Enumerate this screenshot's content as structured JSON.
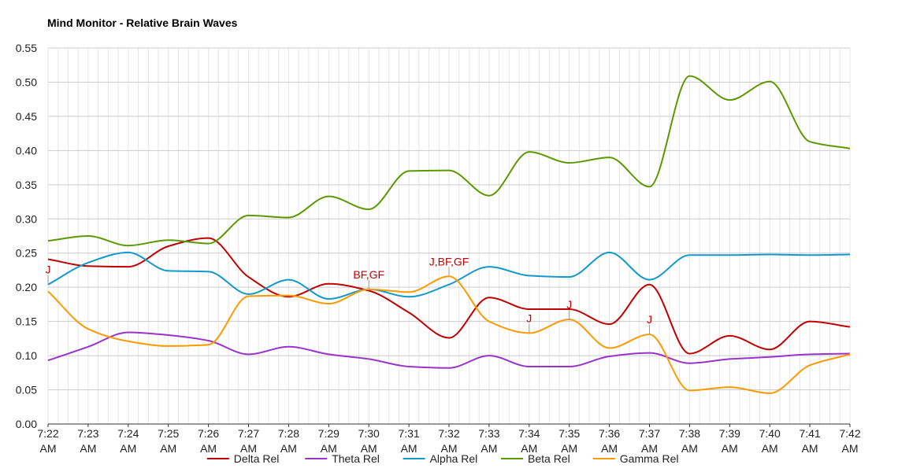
{
  "chart_data": {
    "type": "line",
    "title": "Mind Monitor -  Relative Brain Waves",
    "xlabel": "",
    "ylabel": "",
    "ylim": [
      0,
      0.55
    ],
    "y_ticks": [
      "0.00",
      "0.05",
      "0.10",
      "0.15",
      "0.20",
      "0.25",
      "0.30",
      "0.35",
      "0.40",
      "0.45",
      "0.50",
      "0.55"
    ],
    "x_ticks": [
      {
        "line1": "7:22",
        "line2": "AM"
      },
      {
        "line1": "7:23",
        "line2": "AM"
      },
      {
        "line1": "7:24",
        "line2": "AM"
      },
      {
        "line1": "7:25",
        "line2": "AM"
      },
      {
        "line1": "7:26",
        "line2": "AM"
      },
      {
        "line1": "7:27",
        "line2": "AM"
      },
      {
        "line1": "7:28",
        "line2": "AM"
      },
      {
        "line1": "7:29",
        "line2": "AM"
      },
      {
        "line1": "7:30",
        "line2": "AM"
      },
      {
        "line1": "7:31",
        "line2": "AM"
      },
      {
        "line1": "7:32",
        "line2": "AM"
      },
      {
        "line1": "7:33",
        "line2": "AM"
      },
      {
        "line1": "7:34",
        "line2": "AM"
      },
      {
        "line1": "7:35",
        "line2": "AM"
      },
      {
        "line1": "7:36",
        "line2": "AM"
      },
      {
        "line1": "7:37",
        "line2": "AM"
      },
      {
        "line1": "7:38",
        "line2": "AM"
      },
      {
        "line1": "7:39",
        "line2": "AM"
      },
      {
        "line1": "7:40",
        "line2": "AM"
      },
      {
        "line1": "7:41",
        "line2": "AM"
      },
      {
        "line1": "7:42",
        "line2": "AM"
      }
    ],
    "x": [
      "7:22",
      "7:23",
      "7:24",
      "7:25",
      "7:26",
      "7:27",
      "7:28",
      "7:29",
      "7:30",
      "7:31",
      "7:32",
      "7:33",
      "7:34",
      "7:35",
      "7:36",
      "7:37",
      "7:38",
      "7:39",
      "7:40",
      "7:41",
      "7:42"
    ],
    "grid": true,
    "legend_position": "bottom",
    "series": [
      {
        "name": "Delta Rel",
        "color": "#c00000",
        "values": [
          0.241,
          0.231,
          0.23,
          0.26,
          0.272,
          0.215,
          0.186,
          0.205,
          0.195,
          0.163,
          0.126,
          0.185,
          0.168,
          0.168,
          0.146,
          0.204,
          0.103,
          0.129,
          0.109,
          0.15,
          0.142
        ]
      },
      {
        "name": "Theta Rel",
        "color": "#9933cc",
        "values": [
          0.093,
          0.113,
          0.134,
          0.13,
          0.122,
          0.102,
          0.113,
          0.102,
          0.095,
          0.084,
          0.082,
          0.1,
          0.084,
          0.084,
          0.099,
          0.104,
          0.089,
          0.095,
          0.098,
          0.102,
          0.103
        ]
      },
      {
        "name": "Alpha Rel",
        "color": "#1199cc",
        "values": [
          0.204,
          0.236,
          0.251,
          0.224,
          0.223,
          0.19,
          0.211,
          0.183,
          0.197,
          0.186,
          0.204,
          0.23,
          0.217,
          0.215,
          0.251,
          0.211,
          0.247,
          0.247,
          0.248,
          0.247,
          0.248
        ]
      },
      {
        "name": "Beta Rel",
        "color": "#5b9900",
        "values": [
          0.268,
          0.275,
          0.261,
          0.269,
          0.264,
          0.305,
          0.302,
          0.333,
          0.314,
          0.37,
          0.371,
          0.334,
          0.398,
          0.382,
          0.39,
          0.347,
          0.509,
          0.474,
          0.501,
          0.413,
          0.403
        ]
      },
      {
        "name": "Gamma Rel",
        "color": "#ff9900",
        "values": [
          0.194,
          0.139,
          0.121,
          0.114,
          0.116,
          0.187,
          0.188,
          0.176,
          0.197,
          0.193,
          0.216,
          0.15,
          0.133,
          0.153,
          0.111,
          0.131,
          0.049,
          0.054,
          0.045,
          0.086,
          0.102
        ]
      }
    ],
    "annotations": [
      {
        "text": "J",
        "x": "7:22",
        "y": 0.204,
        "color": "#c00000"
      },
      {
        "text": "BF,GF",
        "x": "7:30",
        "y": 0.197,
        "color": "#c00000"
      },
      {
        "text": "J,BF,GF",
        "x": "7:32",
        "y": 0.216,
        "color": "#c00000"
      },
      {
        "text": "J",
        "x": "7:34",
        "y": 0.133,
        "color": "#c00000"
      },
      {
        "text": "J",
        "x": "7:35",
        "y": 0.153,
        "color": "#c00000"
      },
      {
        "text": "J",
        "x": "7:37",
        "y": 0.131,
        "color": "#c00000"
      }
    ]
  }
}
